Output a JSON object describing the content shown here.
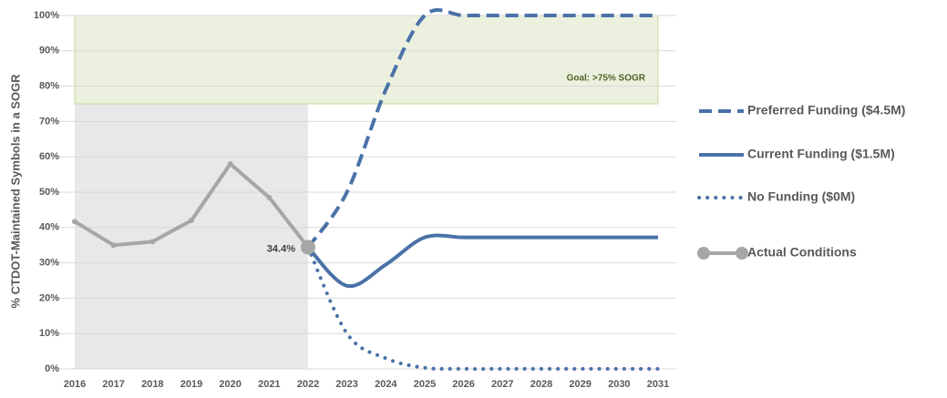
{
  "chart_data": {
    "type": "line",
    "y_label": "% CTDOT-Maintained Symbols in a SOGR",
    "categories": [
      "2016",
      "2017",
      "2018",
      "2019",
      "2020",
      "2021",
      "2022",
      "2023",
      "2024",
      "2025",
      "2026",
      "2027",
      "2028",
      "2029",
      "2030",
      "2031"
    ],
    "ylim": [
      0,
      100
    ],
    "yticks": [
      {
        "value": 0,
        "label": "0%"
      },
      {
        "value": 10,
        "label": "10%"
      },
      {
        "value": 20,
        "label": "20%"
      },
      {
        "value": 30,
        "label": "30%"
      },
      {
        "value": 40,
        "label": "40%"
      },
      {
        "value": 50,
        "label": "50%"
      },
      {
        "value": 60,
        "label": "60%"
      },
      {
        "value": 70,
        "label": "70%"
      },
      {
        "value": 80,
        "label": "80%"
      },
      {
        "value": 90,
        "label": "90%"
      },
      {
        "value": 100,
        "label": "100%"
      }
    ],
    "grid": true,
    "goal": {
      "label": "Goal: >75% SOGR",
      "range": [
        75,
        100
      ],
      "color": "#ebf1de"
    },
    "history_color": "#e8e8e8",
    "series": [
      {
        "name": "Preferred Funding ($4.5M)",
        "color": "#4a72a8",
        "style": "dashed",
        "smooth": true,
        "values": [
          null,
          null,
          null,
          null,
          null,
          null,
          34.4,
          50,
          79,
          100,
          100,
          100,
          100,
          100,
          100,
          100
        ]
      },
      {
        "name": "Current Funding ($1.5M)",
        "color": "#4a72a8",
        "style": "solid",
        "smooth": true,
        "values": [
          null,
          null,
          null,
          null,
          null,
          null,
          34.4,
          23.5,
          29.5,
          37.2,
          37.2,
          37.2,
          37.2,
          37.2,
          37.2,
          37.2
        ]
      },
      {
        "name": "No Funding ($0M)",
        "color": "#4a72a8",
        "style": "dotted",
        "smooth": true,
        "values": [
          null,
          null,
          null,
          null,
          null,
          null,
          34.4,
          10,
          3,
          0.3,
          0,
          0,
          0,
          0,
          0,
          0
        ]
      },
      {
        "name": "Actual Conditions",
        "color": "#a6a6a6",
        "style": "solid",
        "smooth": false,
        "history": true,
        "values": [
          41.7,
          35,
          36,
          42,
          58,
          48.5,
          34.4,
          null,
          null,
          null,
          null,
          null,
          null,
          null,
          null,
          null
        ],
        "value_labels": [
          null,
          null,
          null,
          null,
          null,
          null,
          "34.4%",
          null,
          null,
          null,
          null,
          null,
          null,
          null,
          null,
          null
        ]
      }
    ],
    "legend": "right"
  }
}
